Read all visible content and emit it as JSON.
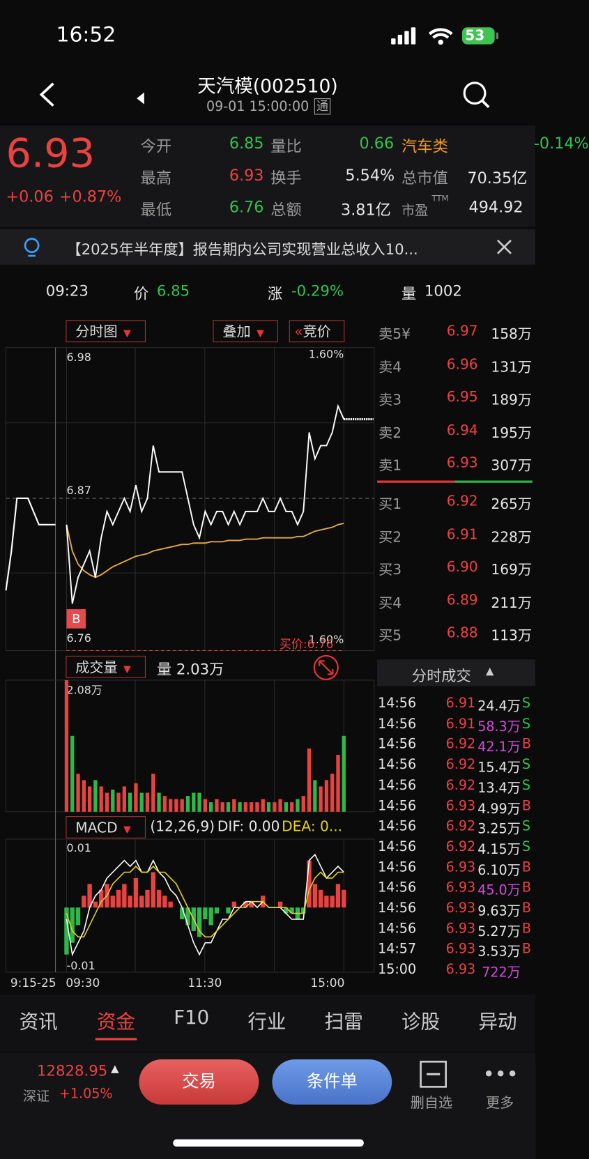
{
  "status": {
    "time": "16:52",
    "battery": "53"
  },
  "header": {
    "title": "天汽模(002510)",
    "subtitle": "09-01 15:00:00",
    "badge": "通"
  },
  "quote": {
    "price": "6.93",
    "change": "+0.06",
    "change_pct": "+0.87%",
    "cells": [
      [
        "今开",
        "6.85"
      ],
      [
        "量比",
        "0.66"
      ],
      [
        "汽车类",
        "-0.14%"
      ],
      [
        "最高",
        "6.93"
      ],
      [
        "换手",
        "5.54%"
      ],
      [
        "总市值",
        "70.35亿"
      ],
      [
        "最低",
        "6.76"
      ],
      [
        "总额",
        "3.81亿"
      ],
      [
        "市盈",
        "494.92"
      ]
    ],
    "ttm": "TTM"
  },
  "banner": "【2025年半年度】报告期内公司实现营业总收入10...",
  "crosshair": {
    "time": "09:23",
    "price_label": "价",
    "price": "6.85",
    "change_label": "涨",
    "change": "-0.29%",
    "vol_label": "量",
    "vol": "1002"
  },
  "tools": {
    "view": "分时图",
    "overlay": "叠加",
    "auction": "竞价"
  },
  "intraday": {
    "ylim": [
      6.76,
      6.98
    ],
    "yticks": [
      6.98,
      6.87,
      6.76
    ],
    "pct_top": "1.60%",
    "pct_bottom": "1.60%",
    "buy_price": "买价:6.76",
    "marker": "B",
    "times": [
      "9:15-25",
      "09:30",
      "11:30",
      "15:00"
    ],
    "premarket": [
      6.8,
      6.83,
      6.87,
      6.87,
      6.87,
      6.86,
      6.85,
      6.85,
      6.85,
      6.85
    ],
    "price": [
      6.85,
      6.79,
      6.81,
      6.82,
      6.83,
      6.81,
      6.84,
      6.86,
      6.85,
      6.86,
      6.87,
      6.86,
      6.88,
      6.86,
      6.87,
      6.91,
      6.89,
      6.89,
      6.89,
      6.89,
      6.89,
      6.87,
      6.85,
      6.84,
      6.86,
      6.85,
      6.86,
      6.86,
      6.85,
      6.86,
      6.85,
      6.86,
      6.86,
      6.86,
      6.87,
      6.86,
      6.86,
      6.87,
      6.86,
      6.86,
      6.85,
      6.86,
      6.92,
      6.9,
      6.91,
      6.91,
      6.92,
      6.94,
      6.93
    ],
    "average": [
      6.85,
      6.83,
      6.82,
      6.815,
      6.812,
      6.81,
      6.812,
      6.815,
      6.818,
      6.82,
      6.822,
      6.824,
      6.826,
      6.827,
      6.828,
      6.83,
      6.831,
      6.832,
      6.833,
      6.834,
      6.835,
      6.835,
      6.836,
      6.836,
      6.836,
      6.837,
      6.837,
      6.837,
      6.838,
      6.838,
      6.838,
      6.839,
      6.839,
      6.839,
      6.84,
      6.84,
      6.84,
      6.84,
      6.84,
      6.84,
      6.841,
      6.841,
      6.843,
      6.845,
      6.846,
      6.847,
      6.848,
      6.85,
      6.851
    ]
  },
  "volume": {
    "name": "成交量",
    "current": "量 2.03万",
    "ylim": [
      0,
      2.08
    ],
    "yticks": [
      {
        "value": 2.08,
        "label": "2.08万"
      }
    ],
    "values": [
      2.08,
      1.2,
      0.6,
      0.5,
      0.4,
      0.5,
      0.4,
      0.3,
      0.35,
      0.3,
      0.4,
      0.3,
      0.45,
      0.3,
      0.3,
      0.6,
      0.3,
      0.25,
      0.2,
      0.2,
      0.2,
      0.25,
      0.3,
      0.3,
      0.2,
      0.15,
      0.2,
      0.15,
      0.15,
      0.2,
      0.15,
      0.15,
      0.15,
      0.15,
      0.2,
      0.15,
      0.15,
      0.2,
      0.15,
      0.15,
      0.2,
      0.25,
      1.0,
      0.5,
      0.4,
      0.5,
      0.6,
      0.9,
      1.2
    ]
  },
  "macd": {
    "name": "MACD",
    "params": "(12,26,9)",
    "dif_label": "DIF: 0.00",
    "dea_label": "DEA: 0...",
    "ylim": [
      -0.011,
      0.011
    ],
    "yticks": [
      0.01,
      -0.01
    ],
    "bars": [
      -0.008,
      -0.006,
      -0.003,
      0.002,
      0.004,
      0.001,
      0.003,
      0.004,
      0.002,
      0.003,
      0.004,
      0.002,
      0.005,
      0.002,
      0.003,
      0.006,
      0.003,
      0.002,
      0.001,
      0.0,
      -0.002,
      -0.003,
      -0.004,
      -0.005,
      -0.002,
      -0.003,
      -0.001,
      0.0,
      -0.001,
      0.001,
      0.0,
      0.001,
      0.001,
      0.0,
      0.002,
      0.0,
      0.0,
      0.001,
      -0.001,
      -0.001,
      -0.002,
      -0.001,
      0.008,
      0.004,
      0.003,
      0.002,
      0.002,
      0.004,
      0.003
    ],
    "dif": [
      -0.002,
      -0.008,
      -0.006,
      -0.004,
      0.0,
      0.002,
      0.003,
      0.005,
      0.006,
      0.007,
      0.008,
      0.007,
      0.008,
      0.006,
      0.006,
      0.008,
      0.006,
      0.005,
      0.003,
      0.002,
      0.0,
      -0.003,
      -0.006,
      -0.008,
      -0.006,
      -0.006,
      -0.004,
      -0.002,
      -0.002,
      0.0,
      0.0,
      0.001,
      0.001,
      0.0,
      0.001,
      0.0,
      0.0,
      0.0,
      -0.001,
      -0.002,
      -0.002,
      -0.002,
      0.008,
      0.009,
      0.007,
      0.005,
      0.006,
      0.007,
      0.006
    ],
    "dea": [
      -0.001,
      -0.004,
      -0.005,
      -0.005,
      -0.003,
      -0.001,
      0.001,
      0.002,
      0.004,
      0.005,
      0.006,
      0.006,
      0.007,
      0.006,
      0.006,
      0.007,
      0.006,
      0.006,
      0.005,
      0.004,
      0.002,
      0.0,
      -0.002,
      -0.004,
      -0.005,
      -0.005,
      -0.004,
      -0.003,
      -0.002,
      -0.001,
      0.0,
      0.0,
      0.001,
      0.001,
      0.001,
      0.0,
      0.0,
      0.0,
      0.0,
      -0.001,
      -0.001,
      -0.001,
      0.003,
      0.005,
      0.006,
      0.005,
      0.005,
      0.006,
      0.006
    ]
  },
  "order_book": {
    "asks": [
      [
        "卖5¥",
        "6.97",
        "158万"
      ],
      [
        "卖4",
        "6.96",
        "131万"
      ],
      [
        "卖3",
        "6.95",
        "189万"
      ],
      [
        "卖2",
        "6.94",
        "195万"
      ],
      [
        "卖1",
        "6.93",
        "307万"
      ]
    ],
    "bids": [
      [
        "买1",
        "6.92",
        "265万"
      ],
      [
        "买2",
        "6.91",
        "228万"
      ],
      [
        "买3",
        "6.90",
        "169万"
      ],
      [
        "买4",
        "6.89",
        "211万"
      ],
      [
        "买5",
        "6.88",
        "113万"
      ]
    ]
  },
  "trades": {
    "title": "分时成交",
    "rows": [
      [
        "14:56",
        "6.91",
        "24.4万",
        "S"
      ],
      [
        "14:56",
        "6.91",
        "58.3万",
        "S"
      ],
      [
        "14:56",
        "6.92",
        "42.1万",
        "B"
      ],
      [
        "14:56",
        "6.92",
        "15.4万",
        "S"
      ],
      [
        "14:56",
        "6.92",
        "13.4万",
        "S"
      ],
      [
        "14:56",
        "6.93",
        "4.99万",
        "B"
      ],
      [
        "14:56",
        "6.92",
        "3.25万",
        "S"
      ],
      [
        "14:56",
        "6.92",
        "4.15万",
        "S"
      ],
      [
        "14:56",
        "6.93",
        "6.10万",
        "B"
      ],
      [
        "14:56",
        "6.93",
        "45.0万",
        "B"
      ],
      [
        "14:56",
        "6.93",
        "9.63万",
        "B"
      ],
      [
        "14:56",
        "6.93",
        "5.27万",
        "B"
      ],
      [
        "14:57",
        "6.93",
        "3.53万",
        "B"
      ],
      [
        "15:00",
        "6.93",
        "722万"
      ]
    ],
    "big": [
      1,
      2,
      9,
      13
    ]
  },
  "tabs": {
    "items": [
      "资讯",
      "资金",
      "F10",
      "行业",
      "扫雷",
      "诊股",
      "异动"
    ],
    "active": 1
  },
  "bottom": {
    "index_value": "12828.95",
    "index_name": "深证",
    "index_change": "+1.05%",
    "trade": "交易",
    "condition": "条件单",
    "remove": "删自选",
    "more": "更多"
  }
}
